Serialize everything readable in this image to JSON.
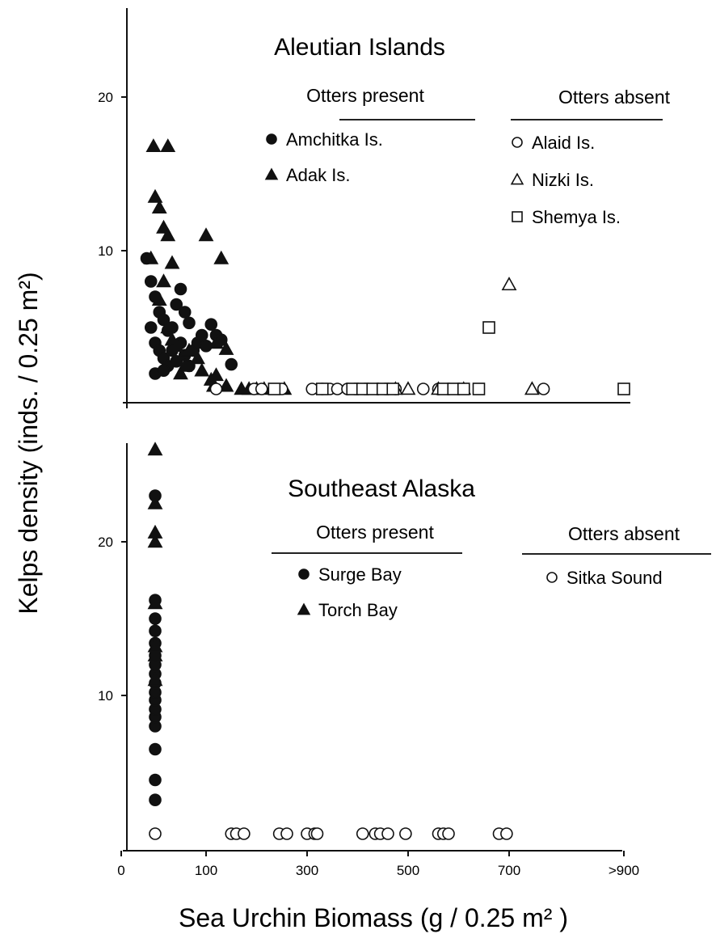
{
  "chart_data": [
    {
      "type": "scatter",
      "title": "Aleutian Islands",
      "ylim": [
        0,
        20
      ],
      "xlim": [
        0,
        900
      ],
      "yticks": [
        "10",
        "20"
      ],
      "legend": {
        "present_heading": "Otters present",
        "absent_heading": "Otters absent"
      },
      "series": [
        {
          "name": "Amchitka Is.",
          "group": "present",
          "marker": "circle",
          "filled": true,
          "points": [
            [
              30,
              9.5
            ],
            [
              35,
              8
            ],
            [
              40,
              7
            ],
            [
              45,
              6
            ],
            [
              50,
              5.5
            ],
            [
              55,
              4.8
            ],
            [
              60,
              5
            ],
            [
              40,
              4
            ],
            [
              45,
              3.5
            ],
            [
              50,
              3
            ],
            [
              55,
              2.5
            ],
            [
              60,
              3.5
            ],
            [
              70,
              4
            ],
            [
              65,
              2.8
            ],
            [
              75,
              3.2
            ],
            [
              80,
              2.5
            ],
            [
              85,
              3.5
            ],
            [
              90,
              4
            ],
            [
              95,
              4.5
            ],
            [
              70,
              7.5
            ],
            [
              65,
              6.5
            ],
            [
              75,
              6
            ],
            [
              80,
              5.3
            ],
            [
              100,
              3.8
            ],
            [
              110,
              5.2
            ],
            [
              120,
              4.5
            ],
            [
              130,
              4.2
            ],
            [
              150,
              2.6
            ],
            [
              35,
              5
            ],
            [
              40,
              2
            ],
            [
              50,
              2.2
            ]
          ]
        },
        {
          "name": "Adak Is.",
          "group": "present",
          "marker": "triangle",
          "filled": true,
          "points": [
            [
              38,
              16.8
            ],
            [
              55,
              16.8
            ],
            [
              40,
              13.5
            ],
            [
              45,
              12.8
            ],
            [
              50,
              11.5
            ],
            [
              55,
              11
            ],
            [
              100,
              11
            ],
            [
              130,
              9.5
            ],
            [
              35,
              9.5
            ],
            [
              60,
              9.2
            ],
            [
              50,
              8
            ],
            [
              45,
              6.8
            ],
            [
              55,
              5
            ],
            [
              60,
              4.2
            ],
            [
              65,
              3.8
            ],
            [
              80,
              3.5
            ],
            [
              90,
              3
            ],
            [
              140,
              3.6
            ],
            [
              120,
              4
            ],
            [
              70,
              2
            ],
            [
              75,
              2.5
            ],
            [
              95,
              2.2
            ],
            [
              110,
              1.6
            ],
            [
              120,
              1.9
            ],
            [
              115,
              1.2
            ],
            [
              140,
              1.2
            ],
            [
              170,
              1
            ],
            [
              185,
              1
            ],
            [
              200,
              1
            ],
            [
              215,
              1
            ],
            [
              255,
              1
            ]
          ]
        },
        {
          "name": "Alaid Is.",
          "group": "absent",
          "marker": "circle",
          "filled": false,
          "points": [
            [
              120,
              1
            ],
            [
              195,
              1
            ],
            [
              210,
              1
            ],
            [
              250,
              1
            ],
            [
              310,
              1
            ],
            [
              330,
              1
            ],
            [
              345,
              1
            ],
            [
              360,
              1
            ],
            [
              380,
              1
            ],
            [
              395,
              1
            ],
            [
              415,
              1
            ],
            [
              440,
              1
            ],
            [
              455,
              1
            ],
            [
              475,
              1
            ],
            [
              530,
              1
            ],
            [
              560,
              1
            ],
            [
              760,
              1
            ]
          ]
        },
        {
          "name": "Nizki Is.",
          "group": "absent",
          "marker": "triangle",
          "filled": false,
          "points": [
            [
              700,
              7.8
            ],
            [
              475,
              1
            ],
            [
              500,
              1
            ],
            [
              560,
              1
            ],
            [
              610,
              1
            ],
            [
              740,
              1
            ]
          ]
        },
        {
          "name": "Shemya Is.",
          "group": "absent",
          "marker": "square",
          "filled": false,
          "points": [
            [
              660,
              5
            ],
            [
              235,
              1
            ],
            [
              330,
              1
            ],
            [
              390,
              1
            ],
            [
              410,
              1
            ],
            [
              430,
              1
            ],
            [
              450,
              1
            ],
            [
              470,
              1
            ],
            [
              570,
              1
            ],
            [
              590,
              1
            ],
            [
              610,
              1
            ],
            [
              640,
              1
            ],
            [
              900,
              1
            ]
          ]
        }
      ]
    },
    {
      "type": "scatter",
      "title": "Southeast Alaska",
      "ylim": [
        0,
        25
      ],
      "xlim": [
        0,
        900
      ],
      "xticks": [
        "0",
        "100",
        "300",
        "500",
        "700",
        ">900"
      ],
      "yticks": [
        "10",
        "20"
      ],
      "xlabel": "Sea Urchin Biomass (g / 0.25 m² )",
      "ylabel": "Kelps density (inds. / 0.25 m²)",
      "legend": {
        "present_heading": "Otters present",
        "absent_heading": "Otters absent"
      },
      "series": [
        {
          "name": "Surge Bay",
          "group": "present",
          "marker": "circle",
          "filled": true,
          "points": [
            [
              40,
              3.2
            ],
            [
              40,
              4.5
            ],
            [
              40,
              6.5
            ],
            [
              40,
              8
            ],
            [
              40,
              8.6
            ],
            [
              40,
              9.1
            ],
            [
              40,
              9.7
            ],
            [
              40,
              10.2
            ],
            [
              40,
              10.8
            ],
            [
              40,
              11.4
            ],
            [
              40,
              12.0
            ],
            [
              40,
              12.6
            ],
            [
              40,
              13.4
            ],
            [
              40,
              14.2
            ],
            [
              40,
              15
            ],
            [
              40,
              16.2
            ],
            [
              40,
              23
            ]
          ]
        },
        {
          "name": "Torch Bay",
          "group": "present",
          "marker": "triangle",
          "filled": true,
          "points": [
            [
              40,
              11
            ],
            [
              40,
              12.6
            ],
            [
              40,
              13.2
            ],
            [
              40,
              16
            ],
            [
              40,
              20
            ],
            [
              40,
              20.6
            ],
            [
              40,
              22.5
            ],
            [
              40,
              26
            ]
          ]
        },
        {
          "name": "Sitka Sound",
          "group": "absent",
          "marker": "circle",
          "filled": false,
          "points": [
            [
              40,
              1
            ],
            [
              150,
              1
            ],
            [
              160,
              1
            ],
            [
              175,
              1
            ],
            [
              245,
              1
            ],
            [
              260,
              1
            ],
            [
              300,
              1
            ],
            [
              315,
              1
            ],
            [
              320,
              1
            ],
            [
              410,
              1
            ],
            [
              435,
              1
            ],
            [
              445,
              1
            ],
            [
              460,
              1
            ],
            [
              495,
              1
            ],
            [
              560,
              1
            ],
            [
              570,
              1
            ],
            [
              580,
              1
            ],
            [
              680,
              1
            ],
            [
              695,
              1
            ]
          ]
        }
      ]
    }
  ]
}
